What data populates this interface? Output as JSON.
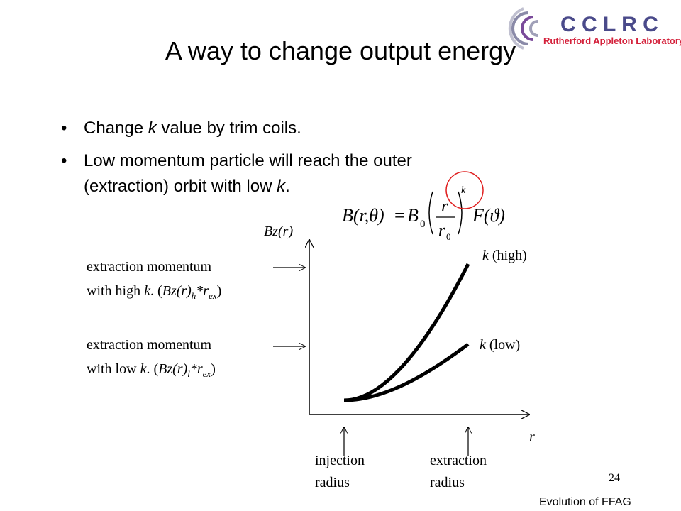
{
  "logo": {
    "name": "C C L R C",
    "subtitle": "Rutherford Appleton Laboratory"
  },
  "title": "A way to change output energy",
  "bullets": [
    [
      "Change ",
      "k",
      " value by trim coils."
    ],
    [
      "Low momentum particle will reach the outer",
      "(extraction) orbit with low ",
      "k",
      "."
    ]
  ],
  "formula": {
    "lhs": "B(r,θ)",
    "eq": "=",
    "b": "B",
    "b_sub": "0",
    "num": "r",
    "den": "r",
    "den_sub": "0",
    "exp": "k",
    "func": "F(ϑ)"
  },
  "diagram": {
    "y_label": "Bz(r)",
    "x_label": "r",
    "curve_high": [
      "k",
      " (high)"
    ],
    "curve_low": [
      "k",
      " (low)"
    ],
    "note_high": [
      "extraction momentum",
      "with high ",
      "k",
      ". (",
      "Bz(r)",
      "h",
      "*r",
      "ex",
      ")"
    ],
    "note_low": [
      "extraction momentum",
      "with low ",
      "k",
      ". (",
      "Bz(r)",
      "l",
      "*r",
      "ex",
      ")"
    ],
    "injection": [
      "injection",
      "radius"
    ],
    "extraction": [
      "extraction",
      "radius"
    ]
  },
  "page_number": "24",
  "footer": "Evolution of FFAG"
}
